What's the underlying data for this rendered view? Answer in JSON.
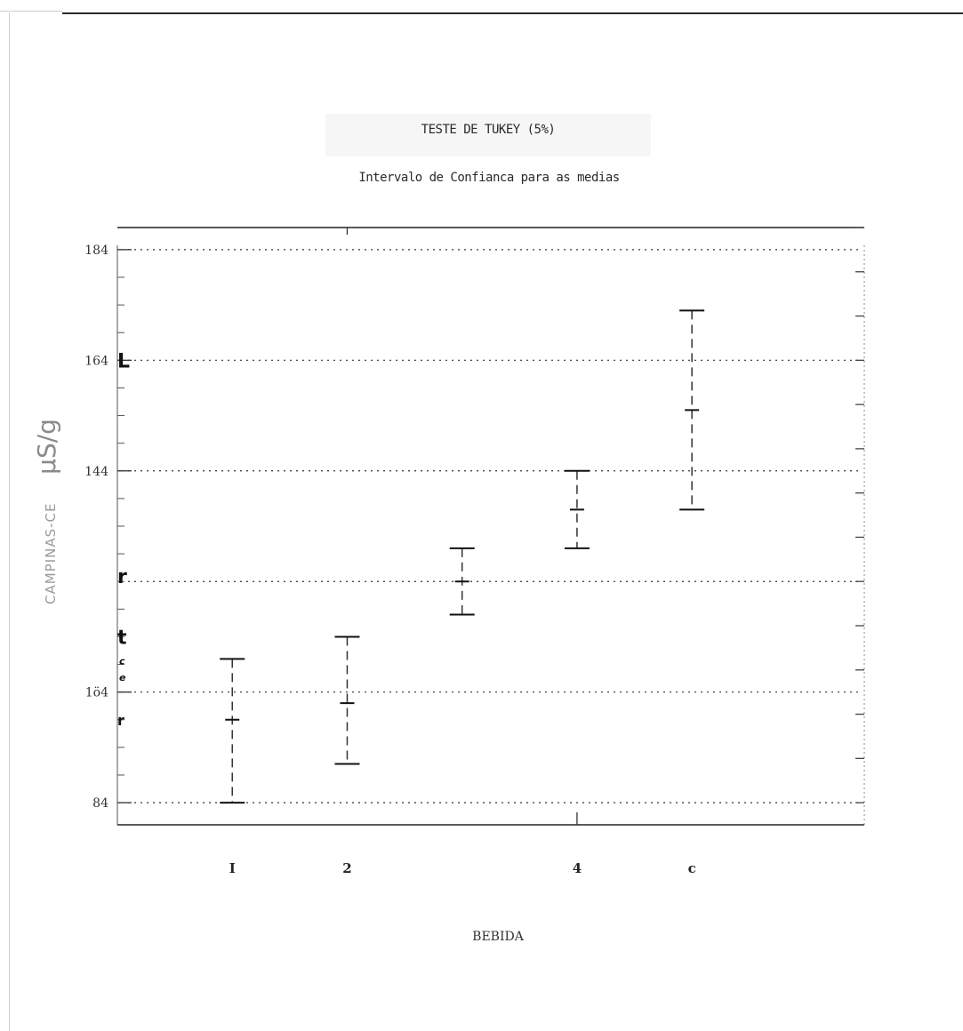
{
  "chart_data": {
    "type": "errorbar",
    "title": "TESTE DE TUKEY (5%)",
    "subtitle": "Intervalo de Confianca para as medias",
    "xlabel": "BEBIDA",
    "ylabel_location": "CAMPINAS-CE",
    "ylabel_unit": "µS/g",
    "x_tick_labels": [
      {
        "x": 1,
        "label": "I"
      },
      {
        "x": 2,
        "label": "2"
      },
      {
        "x": 4,
        "label": "4"
      },
      {
        "x": 5,
        "label": "c"
      }
    ],
    "y_ticks": [
      84,
      104,
      144,
      164,
      184
    ],
    "y_tick_labels": [
      "84",
      "1ö4",
      "144",
      "164",
      "184"
    ],
    "ylim": [
      80,
      188
    ],
    "xlim": [
      0,
      6.5
    ],
    "gridlines_y": [
      84,
      104,
      124,
      144,
      164,
      184
    ],
    "grid": "dotted horizontal",
    "intervals": [
      {
        "x": 1,
        "low": 84,
        "mean": 99,
        "high": 110
      },
      {
        "x": 2,
        "low": 91,
        "mean": 102,
        "high": 114
      },
      {
        "x": 3,
        "low": 118,
        "mean": 124,
        "high": 130
      },
      {
        "x": 4,
        "low": 130,
        "mean": 137,
        "high": 144
      },
      {
        "x": 5,
        "low": 137,
        "mean": 155,
        "high": 173
      }
    ],
    "stray_marks": [
      "L",
      "r",
      "t",
      "c",
      "e",
      "r"
    ],
    "stray_small_marks": [
      "c",
      "e"
    ],
    "accent_color": "#111111",
    "grid_color": "#333333"
  }
}
